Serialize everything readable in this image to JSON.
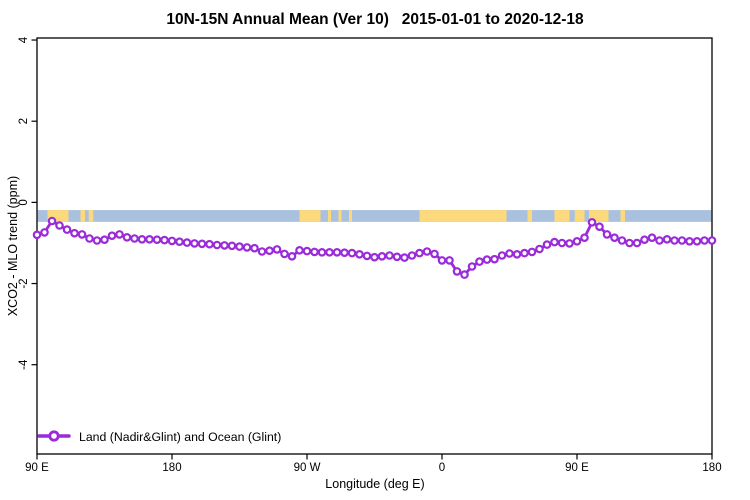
{
  "title": "10N-15N Annual Mean (Ver 10)   2015-01-01 to 2020-12-18",
  "y_axis": {
    "label": "XCO2 - MLO trend (ppm)",
    "tick_labels": [
      "4",
      "2",
      "0",
      "-2",
      "-4"
    ],
    "tick_values": [
      4,
      2,
      0,
      -2,
      -4
    ]
  },
  "x_axis": {
    "label": "Longitude (deg E)",
    "tick_labels": [
      "90 E",
      "180",
      "90 W",
      "0",
      "90 E",
      "180"
    ],
    "tick_values": [
      90,
      180,
      270,
      360,
      450,
      540
    ]
  },
  "legend": {
    "position": "bottom-left",
    "marker": "open-circle-on-line",
    "label": "Land (Nadir&Glint) and Ocean (Glint)"
  },
  "colors": {
    "series": "#9B2AD9",
    "marker_fill": "#FFFFFF",
    "ocean_band": "#A9C1DE",
    "land_band": "#FDD97D",
    "axis": "#000000",
    "background": "#FFFFFF"
  },
  "surface_band": {
    "description": "land-ocean map strip for 10N-15N drawn across the plot",
    "y_top_ppm": -0.19,
    "y_bottom_ppm": -0.48,
    "land_segments_lon": [
      [
        97,
        111
      ],
      [
        119,
        122
      ],
      [
        124.5,
        127.5
      ],
      [
        265,
        279
      ],
      [
        284,
        286
      ],
      [
        291,
        293
      ],
      [
        298,
        300
      ],
      [
        345,
        403
      ],
      [
        417,
        420
      ],
      [
        435,
        445
      ],
      [
        448.5,
        455
      ],
      [
        458,
        471
      ],
      [
        479,
        482
      ]
    ]
  },
  "chart_data": {
    "type": "line",
    "title": "10N-15N Annual Mean (Ver 10)   2015-01-01 to 2020-12-18",
    "xlabel": "Longitude (deg E)",
    "ylabel": "XCO2 - MLO trend (ppm)",
    "xlim": [
      90,
      540
    ],
    "ylim": [
      -6.2,
      4.05
    ],
    "grid": false,
    "legend_position": "bottom-left",
    "x_tick_positions": [
      90,
      180,
      270,
      360,
      450,
      540
    ],
    "x_tick_labels": [
      "90 E",
      "180",
      "90 W",
      "0",
      "90 E",
      "180"
    ],
    "y_tick_positions": [
      4,
      2,
      0,
      -2,
      -4
    ],
    "series": [
      {
        "name": "Land (Nadir&Glint) and Ocean (Glint)",
        "marker": "open-circle",
        "color": "#9B2AD9",
        "x": [
          90,
          95,
          100,
          105,
          110,
          115,
          120,
          125,
          130,
          135,
          140,
          145,
          150,
          155,
          160,
          165,
          170,
          175,
          180,
          185,
          190,
          195,
          200,
          205,
          210,
          215,
          220,
          225,
          230,
          235,
          240,
          245,
          250,
          255,
          260,
          265,
          270,
          275,
          280,
          285,
          290,
          295,
          300,
          305,
          310,
          315,
          320,
          325,
          330,
          335,
          340,
          345,
          350,
          355,
          360,
          365,
          370,
          375,
          380,
          385,
          390,
          395,
          400,
          405,
          410,
          415,
          420,
          425,
          430,
          435,
          440,
          445,
          450,
          455,
          460,
          465,
          470,
          475,
          480,
          485,
          490,
          495,
          500,
          505,
          510,
          515,
          520,
          525,
          530,
          535,
          540
        ],
        "values": [
          -0.8,
          -0.74,
          -0.46,
          -0.57,
          -0.67,
          -0.76,
          -0.79,
          -0.89,
          -0.94,
          -0.92,
          -0.82,
          -0.79,
          -0.86,
          -0.89,
          -0.91,
          -0.91,
          -0.92,
          -0.93,
          -0.95,
          -0.97,
          -0.99,
          -1.01,
          -1.02,
          -1.03,
          -1.05,
          -1.06,
          -1.07,
          -1.09,
          -1.11,
          -1.13,
          -1.21,
          -1.19,
          -1.16,
          -1.27,
          -1.33,
          -1.18,
          -1.2,
          -1.22,
          -1.23,
          -1.23,
          -1.23,
          -1.24,
          -1.25,
          -1.28,
          -1.32,
          -1.35,
          -1.33,
          -1.31,
          -1.34,
          -1.36,
          -1.31,
          -1.25,
          -1.21,
          -1.27,
          -1.43,
          -1.43,
          -1.7,
          -1.78,
          -1.58,
          -1.46,
          -1.41,
          -1.4,
          -1.31,
          -1.26,
          -1.28,
          -1.25,
          -1.22,
          -1.15,
          -1.04,
          -0.98,
          -1.0,
          -1.01,
          -0.96,
          -0.87,
          -0.49,
          -0.6,
          -0.79,
          -0.87,
          -0.94,
          -1.0,
          -1.0,
          -0.92,
          -0.87,
          -0.94,
          -0.91,
          -0.94,
          -0.94,
          -0.96,
          -0.96,
          -0.94,
          -0.94
        ]
      }
    ]
  }
}
